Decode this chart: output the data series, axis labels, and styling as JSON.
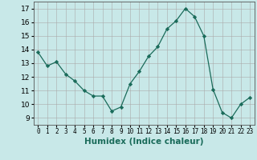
{
  "x": [
    0,
    1,
    2,
    3,
    4,
    5,
    6,
    7,
    8,
    9,
    10,
    11,
    12,
    13,
    14,
    15,
    16,
    17,
    18,
    19,
    20,
    21,
    22,
    23
  ],
  "y": [
    13.8,
    12.8,
    13.1,
    12.2,
    11.7,
    11.0,
    10.6,
    10.6,
    9.5,
    9.8,
    11.5,
    12.4,
    13.5,
    14.2,
    15.5,
    16.1,
    17.0,
    16.4,
    15.0,
    11.1,
    9.4,
    9.0,
    10.0,
    10.5
  ],
  "line_color": "#1a6b5a",
  "marker": "D",
  "marker_size": 2.2,
  "xlabel": "Humidex (Indice chaleur)",
  "background_color": "#c8e8e8",
  "grid_color": "#aaaaaa",
  "xlim": [
    -0.5,
    23.5
  ],
  "ylim": [
    8.5,
    17.5
  ],
  "yticks": [
    9,
    10,
    11,
    12,
    13,
    14,
    15,
    16,
    17
  ],
  "xtick_labels": [
    "0",
    "1",
    "2",
    "3",
    "4",
    "5",
    "6",
    "7",
    "8",
    "9",
    "10",
    "11",
    "12",
    "13",
    "14",
    "15",
    "16",
    "17",
    "18",
    "19",
    "20",
    "21",
    "22",
    "23"
  ]
}
